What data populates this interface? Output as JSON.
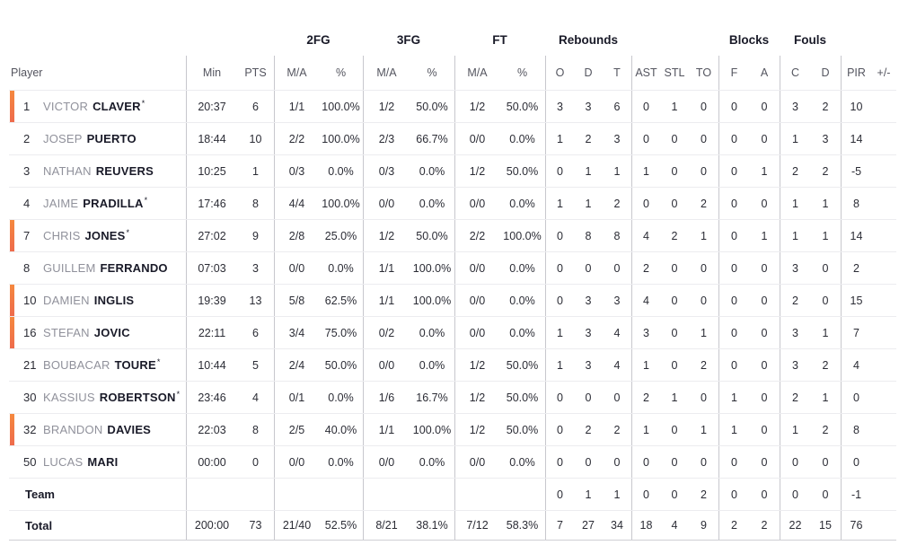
{
  "header_groups": {
    "fg2": "2FG",
    "fg3": "3FG",
    "ft": "FT",
    "rebounds": "Rebounds",
    "blocks": "Blocks",
    "fouls": "Fouls"
  },
  "columns": {
    "player": "Player",
    "min": "Min",
    "pts": "PTS",
    "fg2_ma": "M/A",
    "fg2_pct": "%",
    "fg3_ma": "M/A",
    "fg3_pct": "%",
    "ft_ma": "M/A",
    "ft_pct": "%",
    "reb_o": "O",
    "reb_d": "D",
    "reb_t": "T",
    "ast": "AST",
    "stl": "STL",
    "to": "TO",
    "blk_f": "F",
    "blk_a": "A",
    "foul_c": "C",
    "foul_d": "D",
    "pir": "PIR",
    "pm": "+/-"
  },
  "players": [
    {
      "number": "1",
      "first": "VICTOR",
      "last": "CLAVER",
      "mark": "*",
      "on_court": true,
      "min": "20:37",
      "pts": "6",
      "fg2_ma": "1/1",
      "fg2_pct": "100.0%",
      "fg3_ma": "1/2",
      "fg3_pct": "50.0%",
      "ft_ma": "1/2",
      "ft_pct": "50.0%",
      "reb_o": "3",
      "reb_d": "3",
      "reb_t": "6",
      "ast": "0",
      "stl": "1",
      "to": "0",
      "blk_f": "0",
      "blk_a": "0",
      "foul_c": "3",
      "foul_d": "2",
      "pir": "10",
      "pm": ""
    },
    {
      "number": "2",
      "first": "JOSEP",
      "last": "PUERTO",
      "mark": "",
      "on_court": false,
      "min": "18:44",
      "pts": "10",
      "fg2_ma": "2/2",
      "fg2_pct": "100.0%",
      "fg3_ma": "2/3",
      "fg3_pct": "66.7%",
      "ft_ma": "0/0",
      "ft_pct": "0.0%",
      "reb_o": "1",
      "reb_d": "2",
      "reb_t": "3",
      "ast": "0",
      "stl": "0",
      "to": "0",
      "blk_f": "0",
      "blk_a": "0",
      "foul_c": "1",
      "foul_d": "3",
      "pir": "14",
      "pm": ""
    },
    {
      "number": "3",
      "first": "NATHAN",
      "last": "REUVERS",
      "mark": "",
      "on_court": false,
      "min": "10:25",
      "pts": "1",
      "fg2_ma": "0/3",
      "fg2_pct": "0.0%",
      "fg3_ma": "0/3",
      "fg3_pct": "0.0%",
      "ft_ma": "1/2",
      "ft_pct": "50.0%",
      "reb_o": "0",
      "reb_d": "1",
      "reb_t": "1",
      "ast": "1",
      "stl": "0",
      "to": "0",
      "blk_f": "0",
      "blk_a": "1",
      "foul_c": "2",
      "foul_d": "2",
      "pir": "-5",
      "pm": ""
    },
    {
      "number": "4",
      "first": "JAIME",
      "last": "PRADILLA",
      "mark": "*",
      "on_court": false,
      "min": "17:46",
      "pts": "8",
      "fg2_ma": "4/4",
      "fg2_pct": "100.0%",
      "fg3_ma": "0/0",
      "fg3_pct": "0.0%",
      "ft_ma": "0/0",
      "ft_pct": "0.0%",
      "reb_o": "1",
      "reb_d": "1",
      "reb_t": "2",
      "ast": "0",
      "stl": "0",
      "to": "2",
      "blk_f": "0",
      "blk_a": "0",
      "foul_c": "1",
      "foul_d": "1",
      "pir": "8",
      "pm": ""
    },
    {
      "number": "7",
      "first": "CHRIS",
      "last": "JONES",
      "mark": "*",
      "on_court": true,
      "min": "27:02",
      "pts": "9",
      "fg2_ma": "2/8",
      "fg2_pct": "25.0%",
      "fg3_ma": "1/2",
      "fg3_pct": "50.0%",
      "ft_ma": "2/2",
      "ft_pct": "100.0%",
      "reb_o": "0",
      "reb_d": "8",
      "reb_t": "8",
      "ast": "4",
      "stl": "2",
      "to": "1",
      "blk_f": "0",
      "blk_a": "1",
      "foul_c": "1",
      "foul_d": "1",
      "pir": "14",
      "pm": ""
    },
    {
      "number": "8",
      "first": "GUILLEM",
      "last": "FERRANDO",
      "mark": "",
      "on_court": false,
      "min": "07:03",
      "pts": "3",
      "fg2_ma": "0/0",
      "fg2_pct": "0.0%",
      "fg3_ma": "1/1",
      "fg3_pct": "100.0%",
      "ft_ma": "0/0",
      "ft_pct": "0.0%",
      "reb_o": "0",
      "reb_d": "0",
      "reb_t": "0",
      "ast": "2",
      "stl": "0",
      "to": "0",
      "blk_f": "0",
      "blk_a": "0",
      "foul_c": "3",
      "foul_d": "0",
      "pir": "2",
      "pm": ""
    },
    {
      "number": "10",
      "first": "DAMIEN",
      "last": "INGLIS",
      "mark": "",
      "on_court": true,
      "min": "19:39",
      "pts": "13",
      "fg2_ma": "5/8",
      "fg2_pct": "62.5%",
      "fg3_ma": "1/1",
      "fg3_pct": "100.0%",
      "ft_ma": "0/0",
      "ft_pct": "0.0%",
      "reb_o": "0",
      "reb_d": "3",
      "reb_t": "3",
      "ast": "4",
      "stl": "0",
      "to": "0",
      "blk_f": "0",
      "blk_a": "0",
      "foul_c": "2",
      "foul_d": "0",
      "pir": "15",
      "pm": ""
    },
    {
      "number": "16",
      "first": "STEFAN",
      "last": "JOVIC",
      "mark": "",
      "on_court": true,
      "min": "22:11",
      "pts": "6",
      "fg2_ma": "3/4",
      "fg2_pct": "75.0%",
      "fg3_ma": "0/2",
      "fg3_pct": "0.0%",
      "ft_ma": "0/0",
      "ft_pct": "0.0%",
      "reb_o": "1",
      "reb_d": "3",
      "reb_t": "4",
      "ast": "3",
      "stl": "0",
      "to": "1",
      "blk_f": "0",
      "blk_a": "0",
      "foul_c": "3",
      "foul_d": "1",
      "pir": "7",
      "pm": ""
    },
    {
      "number": "21",
      "first": "BOUBACAR",
      "last": "TOURE",
      "mark": "*",
      "on_court": false,
      "min": "10:44",
      "pts": "5",
      "fg2_ma": "2/4",
      "fg2_pct": "50.0%",
      "fg3_ma": "0/0",
      "fg3_pct": "0.0%",
      "ft_ma": "1/2",
      "ft_pct": "50.0%",
      "reb_o": "1",
      "reb_d": "3",
      "reb_t": "4",
      "ast": "1",
      "stl": "0",
      "to": "2",
      "blk_f": "0",
      "blk_a": "0",
      "foul_c": "3",
      "foul_d": "2",
      "pir": "4",
      "pm": ""
    },
    {
      "number": "30",
      "first": "KASSIUS",
      "last": "ROBERTSON",
      "mark": "*",
      "on_court": false,
      "min": "23:46",
      "pts": "4",
      "fg2_ma": "0/1",
      "fg2_pct": "0.0%",
      "fg3_ma": "1/6",
      "fg3_pct": "16.7%",
      "ft_ma": "1/2",
      "ft_pct": "50.0%",
      "reb_o": "0",
      "reb_d": "0",
      "reb_t": "0",
      "ast": "2",
      "stl": "1",
      "to": "0",
      "blk_f": "1",
      "blk_a": "0",
      "foul_c": "2",
      "foul_d": "1",
      "pir": "0",
      "pm": ""
    },
    {
      "number": "32",
      "first": "BRANDON",
      "last": "DAVIES",
      "mark": "",
      "on_court": true,
      "min": "22:03",
      "pts": "8",
      "fg2_ma": "2/5",
      "fg2_pct": "40.0%",
      "fg3_ma": "1/1",
      "fg3_pct": "100.0%",
      "ft_ma": "1/2",
      "ft_pct": "50.0%",
      "reb_o": "0",
      "reb_d": "2",
      "reb_t": "2",
      "ast": "1",
      "stl": "0",
      "to": "1",
      "blk_f": "1",
      "blk_a": "0",
      "foul_c": "1",
      "foul_d": "2",
      "pir": "8",
      "pm": ""
    },
    {
      "number": "50",
      "first": "LUCAS",
      "last": "MARI",
      "mark": "",
      "on_court": false,
      "min": "00:00",
      "pts": "0",
      "fg2_ma": "0/0",
      "fg2_pct": "0.0%",
      "fg3_ma": "0/0",
      "fg3_pct": "0.0%",
      "ft_ma": "0/0",
      "ft_pct": "0.0%",
      "reb_o": "0",
      "reb_d": "0",
      "reb_t": "0",
      "ast": "0",
      "stl": "0",
      "to": "0",
      "blk_f": "0",
      "blk_a": "0",
      "foul_c": "0",
      "foul_d": "0",
      "pir": "0",
      "pm": ""
    }
  ],
  "team_row": {
    "label": "Team",
    "min": "",
    "pts": "",
    "fg2_ma": "",
    "fg2_pct": "",
    "fg3_ma": "",
    "fg3_pct": "",
    "ft_ma": "",
    "ft_pct": "",
    "reb_o": "0",
    "reb_d": "1",
    "reb_t": "1",
    "ast": "0",
    "stl": "0",
    "to": "2",
    "blk_f": "0",
    "blk_a": "0",
    "foul_c": "0",
    "foul_d": "0",
    "pir": "-1",
    "pm": ""
  },
  "total_row": {
    "label": "Total",
    "min": "200:00",
    "pts": "73",
    "fg2_ma": "21/40",
    "fg2_pct": "52.5%",
    "fg3_ma": "8/21",
    "fg3_pct": "38.1%",
    "ft_ma": "7/12",
    "ft_pct": "58.3%",
    "reb_o": "7",
    "reb_d": "27",
    "reb_t": "34",
    "ast": "18",
    "stl": "4",
    "to": "9",
    "blk_f": "2",
    "blk_a": "2",
    "foul_c": "22",
    "foul_d": "15",
    "pir": "76",
    "pm": ""
  },
  "colors": {
    "accent_bar_top": "#f5883e",
    "accent_bar_bottom": "#ee6b4c"
  }
}
